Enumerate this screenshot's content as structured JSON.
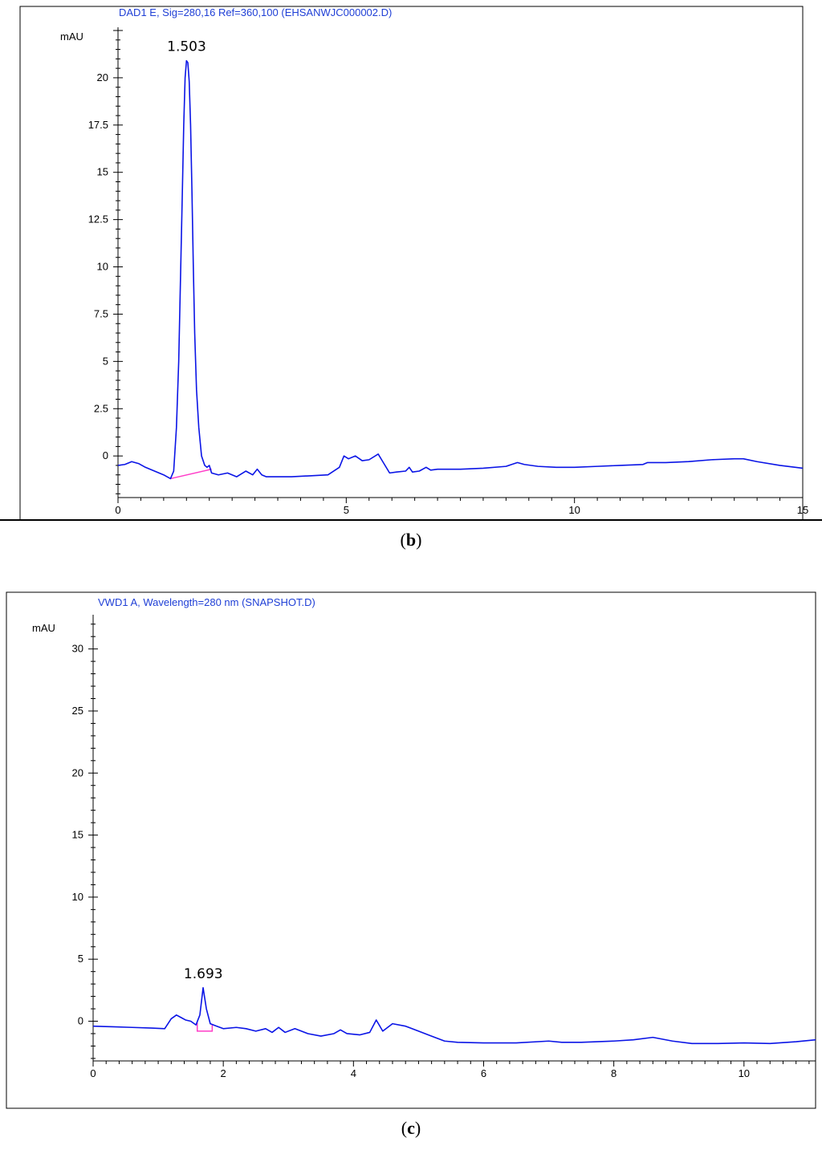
{
  "chart_data": [
    {
      "type": "line",
      "panel_label": "b",
      "title": "DAD1 E, Sig=280,16 Ref=360,100 (EHSANWJC000002.D)",
      "ylabel": "mAU",
      "xlabel": "",
      "xlim": [
        0,
        15
      ],
      "ylim": [
        -2.2,
        22.5
      ],
      "xticks": [
        0,
        5,
        10,
        15
      ],
      "xtick_labels": [
        "0",
        "5",
        "10",
        "15"
      ],
      "yticks": [
        0,
        2.5,
        5,
        7.5,
        10,
        12.5,
        15,
        17.5,
        20
      ],
      "ytick_labels": [
        "0",
        "2.5",
        "5",
        "7.5",
        "10",
        "12.5",
        "15",
        "17.5",
        "20"
      ],
      "grid": false,
      "colors": {
        "trace": "#0a14e6",
        "baseline": "#ff3cc8",
        "frame": "#000000"
      },
      "peak_labels": [
        {
          "x": 1.503,
          "y": 20.9,
          "text": "1.503"
        }
      ],
      "baseline_segments": [
        [
          [
            1.15,
            -1.2
          ],
          [
            2.05,
            -0.7
          ]
        ]
      ],
      "series": [
        {
          "x": [
            0,
            0.15,
            0.3,
            0.45,
            0.6,
            0.8,
            1.0,
            1.15,
            1.22,
            1.28,
            1.33,
            1.37,
            1.41,
            1.44,
            1.47,
            1.5,
            1.53,
            1.56,
            1.59,
            1.62,
            1.65,
            1.68,
            1.72,
            1.77,
            1.83,
            1.9,
            1.95,
            2.0,
            2.05,
            2.2,
            2.4,
            2.6,
            2.8,
            2.95,
            3.05,
            3.15,
            3.25,
            3.4,
            3.8,
            4.2,
            4.6,
            4.85,
            4.95,
            5.05,
            5.2,
            5.35,
            5.5,
            5.7,
            5.8,
            5.95,
            6.1,
            6.3,
            6.38,
            6.45,
            6.6,
            6.75,
            6.85,
            7.0,
            7.5,
            8.0,
            8.5,
            8.75,
            8.9,
            9.2,
            9.6,
            10.0,
            10.5,
            11.0,
            11.5,
            11.6,
            12.0,
            12.5,
            13.0,
            13.5,
            13.7,
            14.0,
            14.5,
            15.0
          ],
          "y": [
            -0.5,
            -0.45,
            -0.3,
            -0.4,
            -0.6,
            -0.8,
            -1.0,
            -1.2,
            -0.8,
            1.5,
            5.0,
            9.5,
            14.0,
            17.5,
            20.0,
            20.9,
            20.8,
            19.8,
            17.5,
            14.0,
            10.0,
            6.5,
            3.5,
            1.5,
            0.0,
            -0.5,
            -0.6,
            -0.5,
            -0.9,
            -1.0,
            -0.9,
            -1.1,
            -0.8,
            -1.0,
            -0.7,
            -1.0,
            -1.1,
            -1.1,
            -1.1,
            -1.05,
            -1.0,
            -0.6,
            0.0,
            -0.15,
            0.0,
            -0.25,
            -0.2,
            0.1,
            -0.3,
            -0.9,
            -0.85,
            -0.8,
            -0.6,
            -0.85,
            -0.8,
            -0.6,
            -0.75,
            -0.7,
            -0.7,
            -0.65,
            -0.55,
            -0.35,
            -0.45,
            -0.55,
            -0.6,
            -0.6,
            -0.55,
            -0.5,
            -0.45,
            -0.35,
            -0.35,
            -0.3,
            -0.2,
            -0.15,
            -0.15,
            -0.3,
            -0.5,
            -0.65
          ]
        }
      ]
    },
    {
      "type": "line",
      "panel_label": "c",
      "title": "VWD1 A, Wavelength=280 nm (SNAPSHOT.D)",
      "ylabel": "mAU",
      "xlabel": "",
      "xlim": [
        0,
        11.1
      ],
      "ylim": [
        -3.2,
        32.5
      ],
      "xticks": [
        0,
        2,
        4,
        6,
        8,
        10
      ],
      "xtick_labels": [
        "0",
        "2",
        "4",
        "6",
        "8",
        "10"
      ],
      "yticks": [
        0,
        5,
        10,
        15,
        20,
        25,
        30
      ],
      "ytick_labels": [
        "0",
        "5",
        "10",
        "15",
        "20",
        "25",
        "30"
      ],
      "grid": false,
      "colors": {
        "trace": "#0a14e6",
        "baseline": "#ff3cc8",
        "frame": "#000000"
      },
      "peak_labels": [
        {
          "x": 1.693,
          "y": 2.7,
          "text": "1.693"
        }
      ],
      "baseline_segments": [
        [
          [
            1.6,
            -0.1
          ],
          [
            1.6,
            -0.8
          ],
          [
            1.83,
            -0.8
          ],
          [
            1.83,
            -0.3
          ]
        ]
      ],
      "series": [
        {
          "x": [
            0,
            0.3,
            0.6,
            0.9,
            1.1,
            1.2,
            1.28,
            1.35,
            1.42,
            1.5,
            1.58,
            1.64,
            1.69,
            1.74,
            1.8,
            1.9,
            2.0,
            2.2,
            2.35,
            2.5,
            2.65,
            2.75,
            2.85,
            2.95,
            3.1,
            3.3,
            3.5,
            3.7,
            3.8,
            3.9,
            4.1,
            4.25,
            4.35,
            4.45,
            4.6,
            4.8,
            5.0,
            5.2,
            5.4,
            5.6,
            6.0,
            6.5,
            7.0,
            7.2,
            7.5,
            8.0,
            8.3,
            8.6,
            8.9,
            9.2,
            9.6,
            10.0,
            10.4,
            10.8,
            11.1
          ],
          "y": [
            -0.4,
            -0.45,
            -0.5,
            -0.55,
            -0.6,
            0.2,
            0.5,
            0.3,
            0.1,
            0.0,
            -0.3,
            0.5,
            2.7,
            1.0,
            -0.2,
            -0.4,
            -0.6,
            -0.5,
            -0.6,
            -0.8,
            -0.6,
            -0.9,
            -0.5,
            -0.9,
            -0.6,
            -1.0,
            -1.2,
            -1.0,
            -0.7,
            -1.0,
            -1.1,
            -0.9,
            0.1,
            -0.8,
            -0.2,
            -0.4,
            -0.8,
            -1.2,
            -1.6,
            -1.7,
            -1.75,
            -1.75,
            -1.6,
            -1.7,
            -1.7,
            -1.6,
            -1.5,
            -1.3,
            -1.6,
            -1.8,
            -1.8,
            -1.75,
            -1.8,
            -1.65,
            -1.5
          ]
        }
      ]
    }
  ],
  "captions": {
    "b": "b",
    "c": "c"
  }
}
